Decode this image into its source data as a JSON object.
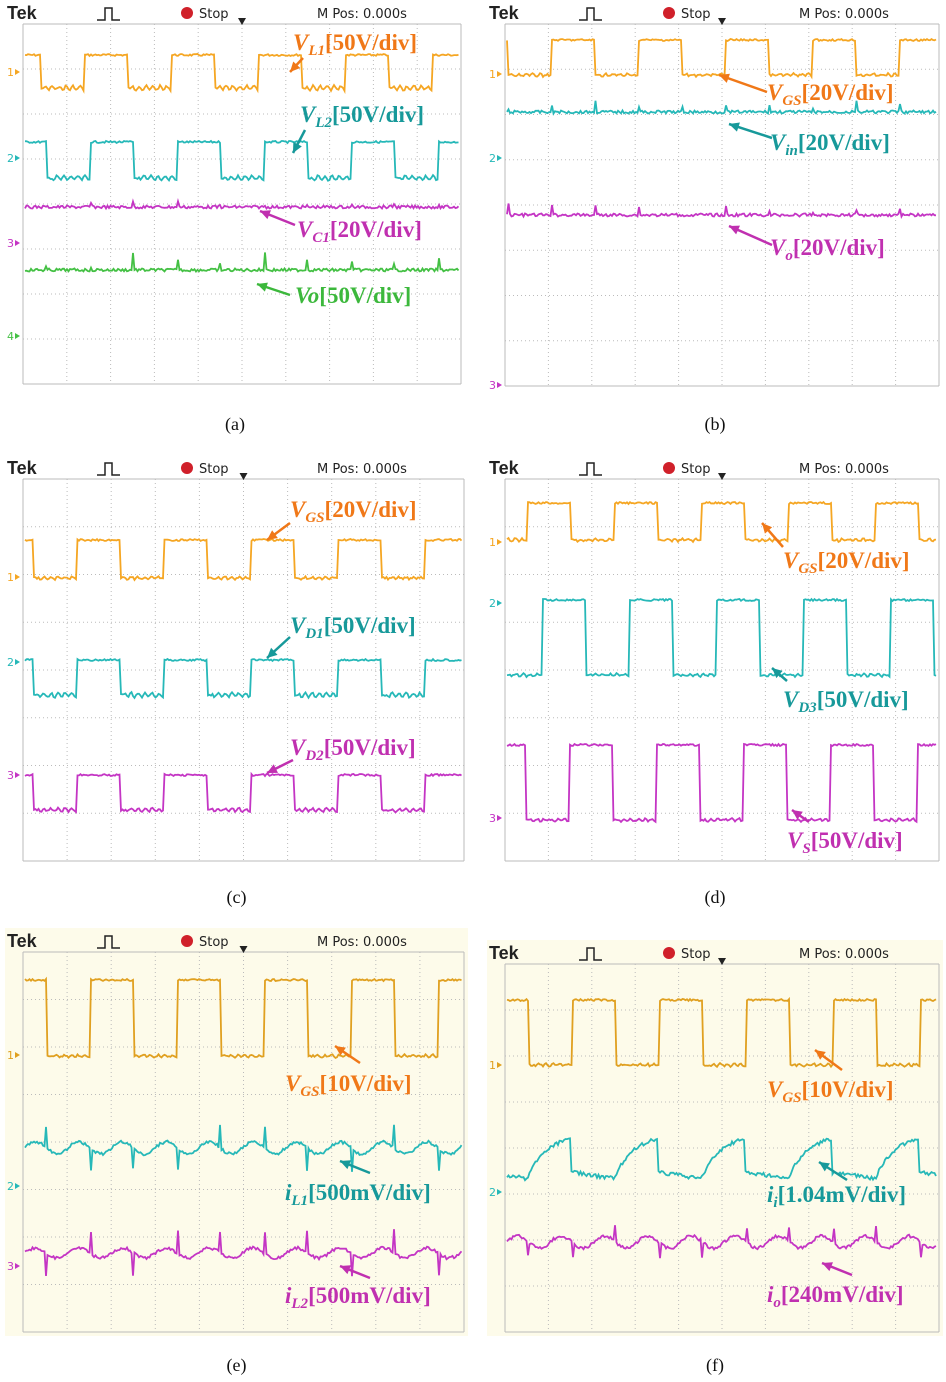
{
  "figure": {
    "panels": [
      {
        "header": {
          "brand": "Tek",
          "status": "Stop",
          "position": "M Pos: 0.000s"
        },
        "channel_markers": [
          "1",
          "2",
          "3",
          "4"
        ],
        "caption": "(a)",
        "traces": [
          {
            "color": "#f5a623",
            "label_color": "#f07818",
            "label": {
              "symbol": "V",
              "subscript": "L1",
              "scale": "[50V/div]"
            }
          },
          {
            "color": "#26b8b8",
            "label_color": "#17999a",
            "label": {
              "symbol": "V",
              "subscript": "L2",
              "scale": "[50V/div]"
            }
          },
          {
            "color": "#c435c4",
            "label_color": "#c030b0",
            "label": {
              "symbol": "V",
              "subscript": "C1",
              "scale": "[20V/div]"
            }
          },
          {
            "color": "#44c044",
            "label_color": "#3cb83c",
            "label": {
              "symbol": "Vo",
              "subscript": "",
              "scale": "[50V/div]"
            }
          }
        ]
      },
      {
        "header": {
          "brand": "Tek",
          "status": "Stop",
          "position": "M Pos: 0.000s"
        },
        "channel_markers": [
          "1",
          "2",
          "3"
        ],
        "caption": "(b)",
        "traces": [
          {
            "color": "#f5a623",
            "label_color": "#f07818",
            "label": {
              "symbol": "V",
              "subscript": "GS",
              "scale": "[20V/div]"
            }
          },
          {
            "color": "#26b8b8",
            "label_color": "#17999a",
            "label": {
              "symbol": "V",
              "subscript": "in",
              "scale": "[20V/div]"
            }
          },
          {
            "color": "#c435c4",
            "label_color": "#c030b0",
            "label": {
              "symbol": "V",
              "subscript": "o",
              "scale": "[20V/div]"
            }
          }
        ]
      },
      {
        "header": {
          "brand": "Tek",
          "status": "Stop",
          "position": "M Pos: 0.000s"
        },
        "channel_markers": [
          "1",
          "2",
          "3"
        ],
        "caption": "(c)",
        "traces": [
          {
            "color": "#f5a623",
            "label_color": "#f07818",
            "label": {
              "symbol": "V",
              "subscript": "GS",
              "scale": "[20V/div]"
            }
          },
          {
            "color": "#26b8b8",
            "label_color": "#17999a",
            "label": {
              "symbol": "V",
              "subscript": "D1",
              "scale": "[50V/div]"
            }
          },
          {
            "color": "#c435c4",
            "label_color": "#c030b0",
            "label": {
              "symbol": "V",
              "subscript": "D2",
              "scale": "[50V/div]"
            }
          }
        ]
      },
      {
        "header": {
          "brand": "Tek",
          "status": "Stop",
          "position": "M Pos: 0.000s"
        },
        "channel_markers": [
          "1",
          "2",
          "3"
        ],
        "caption": "(d)",
        "traces": [
          {
            "color": "#f5a623",
            "label_color": "#f07818",
            "label": {
              "symbol": "V",
              "subscript": "GS",
              "scale": "[20V/div]"
            }
          },
          {
            "color": "#26b8b8",
            "label_color": "#17999a",
            "label": {
              "symbol": "V",
              "subscript": "D3",
              "scale": "[50V/div]"
            }
          },
          {
            "color": "#c435c4",
            "label_color": "#c030b0",
            "label": {
              "symbol": "V",
              "subscript": "S",
              "scale": "[50V/div]"
            }
          }
        ]
      },
      {
        "header": {
          "brand": "Tek",
          "status": "Stop",
          "position": "M Pos: 0.000s"
        },
        "channel_markers": [
          "1",
          "2",
          "3"
        ],
        "caption": "(e)",
        "traces": [
          {
            "color": "#e0a020",
            "label_color": "#f07818",
            "label": {
              "symbol": "V",
              "subscript": "GS",
              "scale": "[10V/div]"
            }
          },
          {
            "color": "#26b8b8",
            "label_color": "#17999a",
            "label": {
              "symbol": "i",
              "subscript": "L1",
              "scale": "[500mV/div]"
            }
          },
          {
            "color": "#c435c4",
            "label_color": "#c030b0",
            "label": {
              "symbol": "i",
              "subscript": "L2",
              "scale": "[500mV/div]"
            }
          }
        ]
      },
      {
        "header": {
          "brand": "Tek",
          "status": "Stop",
          "position": "M Pos: 0.000s"
        },
        "channel_markers": [
          "1",
          "2"
        ],
        "caption": "(f)",
        "traces": [
          {
            "color": "#e0a020",
            "label_color": "#f07818",
            "label": {
              "symbol": "V",
              "subscript": "GS",
              "scale": "[10V/div]"
            }
          },
          {
            "color": "#26b8b8",
            "label_color": "#17999a",
            "label": {
              "symbol": "i",
              "subscript": "i",
              "scale": "[1.04mV/div]"
            }
          },
          {
            "color": "#c435c4",
            "label_color": "#c030b0",
            "label": {
              "symbol": "i",
              "subscript": "o",
              "scale": "[240mV/div]"
            }
          }
        ]
      }
    ]
  }
}
